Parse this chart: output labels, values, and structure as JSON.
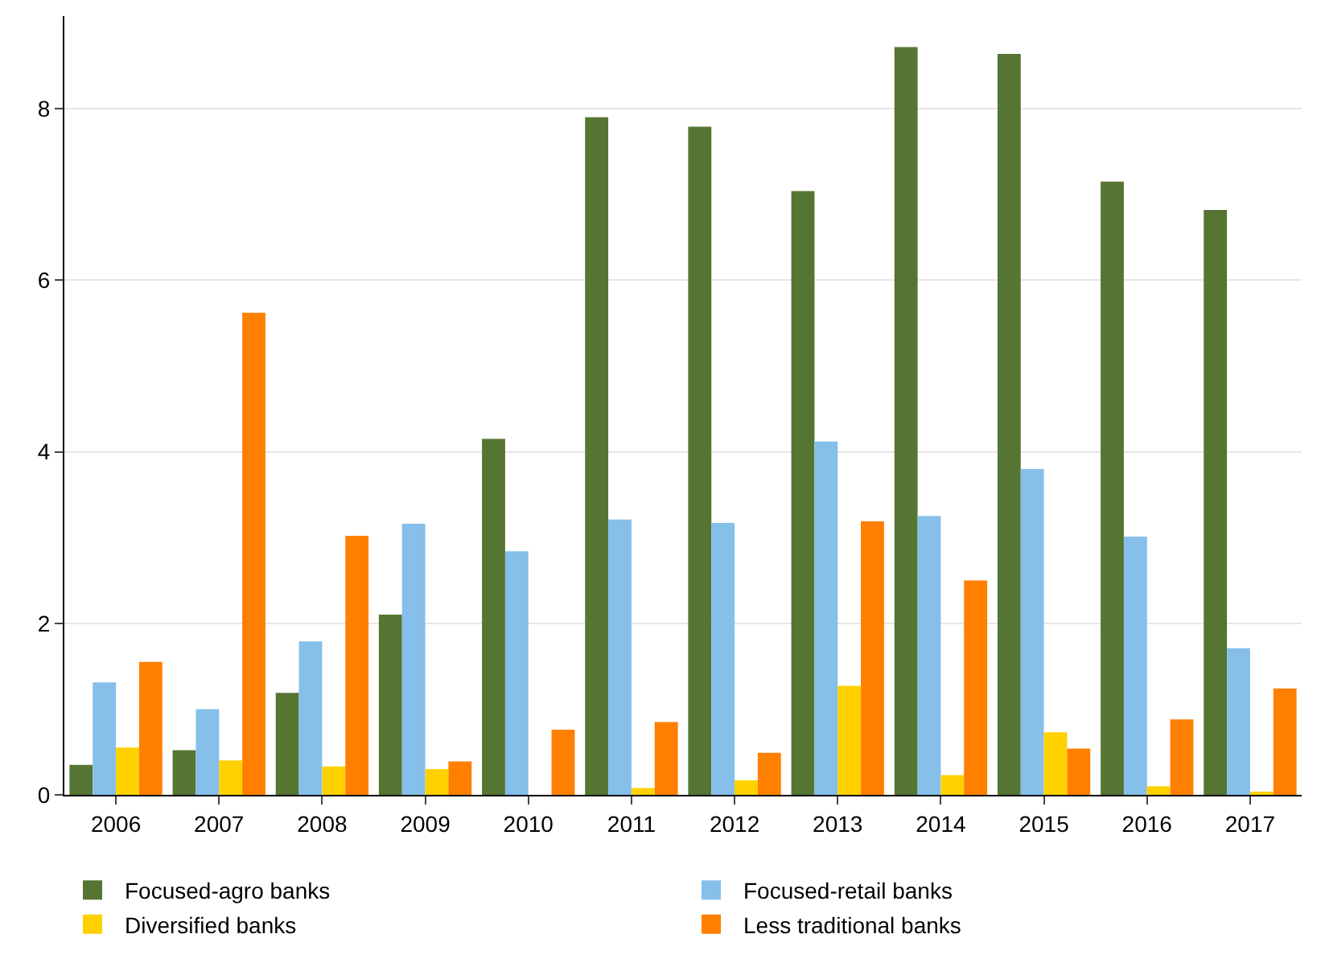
{
  "chart_data": {
    "type": "bar",
    "categories": [
      "2006",
      "2007",
      "2008",
      "2009",
      "2010",
      "2011",
      "2012",
      "2013",
      "2014",
      "2015",
      "2016",
      "2017"
    ],
    "series": [
      {
        "name": "Focused-agro banks",
        "color": "#567532",
        "values": [
          0.35,
          0.52,
          1.19,
          2.1,
          4.15,
          7.9,
          7.79,
          7.04,
          8.72,
          8.64,
          7.15,
          6.82
        ]
      },
      {
        "name": "Focused-retail banks",
        "color": "#85bfea",
        "values": [
          1.31,
          1.0,
          1.79,
          3.16,
          2.84,
          3.21,
          3.17,
          4.12,
          3.25,
          3.8,
          3.01,
          1.71
        ]
      },
      {
        "name": "Diversified banks",
        "color": "#ffd100",
        "values": [
          0.55,
          0.4,
          0.33,
          0.3,
          0,
          0.08,
          0.17,
          1.27,
          0.23,
          0.73,
          0.1,
          0.03
        ]
      },
      {
        "name": "Less traditional banks",
        "color": "#ff7f00",
        "values": [
          1.55,
          5.62,
          3.02,
          0.39,
          0.76,
          0.85,
          0.49,
          3.19,
          2.5,
          0.54,
          0.88,
          1.24
        ]
      }
    ],
    "ylim": [
      0,
      9.08
    ],
    "yticks": [
      0,
      2,
      4,
      6,
      8
    ],
    "grid": "y",
    "legend": "bottom"
  }
}
